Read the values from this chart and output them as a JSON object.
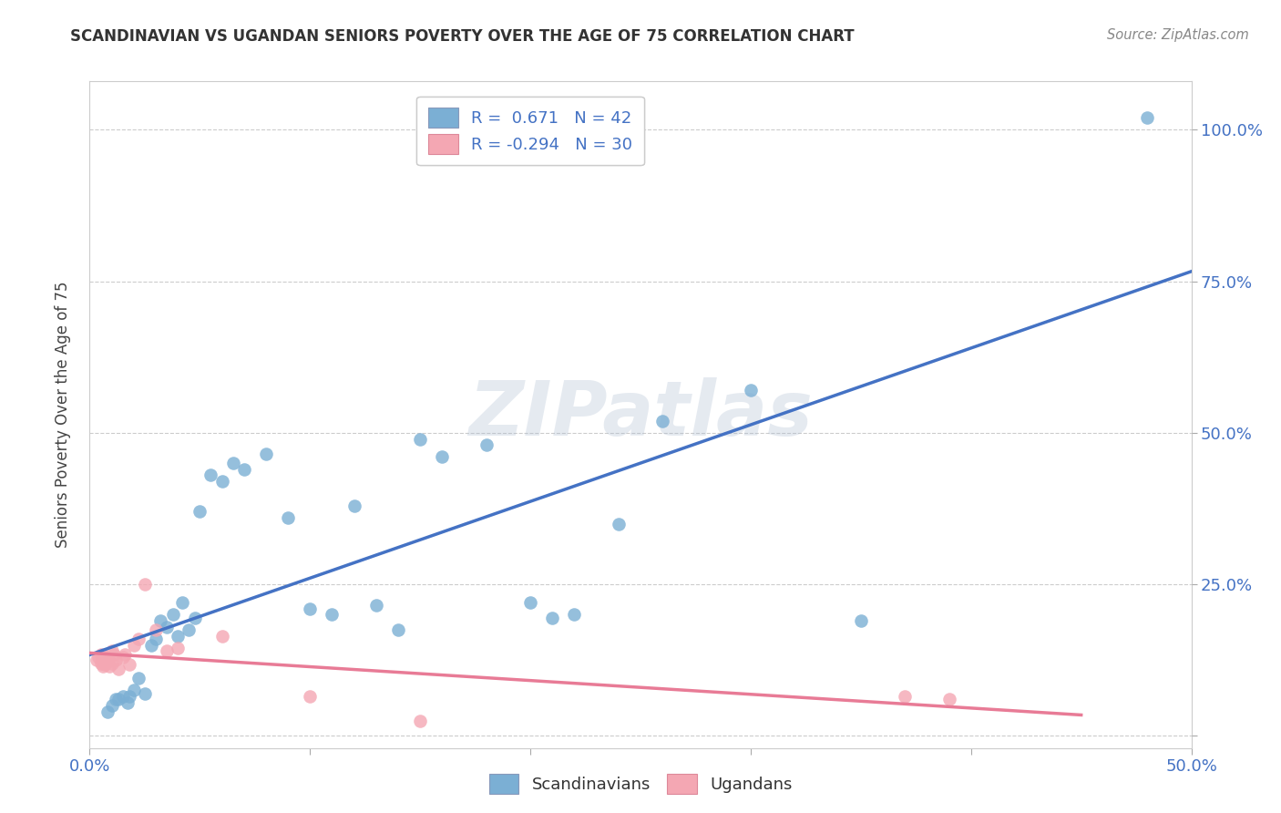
{
  "title": "SCANDINAVIAN VS UGANDAN SENIORS POVERTY OVER THE AGE OF 75 CORRELATION CHART",
  "source": "Source: ZipAtlas.com",
  "ylabel": "Seniors Poverty Over the Age of 75",
  "xlim": [
    0.0,
    0.5
  ],
  "ylim": [
    -0.02,
    1.08
  ],
  "blue_color": "#7BAFD4",
  "pink_color": "#F4A7B3",
  "blue_line_color": "#4472C4",
  "pink_line_color": "#E87B96",
  "axis_color": "#4472C4",
  "r_blue": 0.671,
  "n_blue": 42,
  "r_pink": -0.294,
  "n_pink": 30,
  "watermark": "ZIPatlas",
  "background_color": "#FFFFFF",
  "grid_color": "#CCCCCC",
  "scandinavians_x": [
    0.008,
    0.01,
    0.012,
    0.013,
    0.015,
    0.017,
    0.018,
    0.02,
    0.022,
    0.025,
    0.028,
    0.03,
    0.032,
    0.035,
    0.038,
    0.04,
    0.042,
    0.045,
    0.048,
    0.05,
    0.055,
    0.06,
    0.065,
    0.07,
    0.08,
    0.09,
    0.1,
    0.11,
    0.12,
    0.13,
    0.14,
    0.15,
    0.16,
    0.18,
    0.2,
    0.21,
    0.22,
    0.24,
    0.26,
    0.3,
    0.35,
    0.48
  ],
  "scandinavians_y": [
    0.04,
    0.05,
    0.06,
    0.06,
    0.065,
    0.055,
    0.065,
    0.075,
    0.095,
    0.07,
    0.15,
    0.16,
    0.19,
    0.18,
    0.2,
    0.165,
    0.22,
    0.175,
    0.195,
    0.37,
    0.43,
    0.42,
    0.45,
    0.44,
    0.465,
    0.36,
    0.21,
    0.2,
    0.38,
    0.215,
    0.175,
    0.49,
    0.46,
    0.48,
    0.22,
    0.195,
    0.2,
    0.35,
    0.52,
    0.57,
    0.19,
    1.02
  ],
  "ugandans_x": [
    0.003,
    0.004,
    0.005,
    0.005,
    0.006,
    0.006,
    0.007,
    0.007,
    0.008,
    0.008,
    0.009,
    0.01,
    0.01,
    0.011,
    0.012,
    0.013,
    0.015,
    0.016,
    0.018,
    0.02,
    0.022,
    0.025,
    0.03,
    0.035,
    0.04,
    0.06,
    0.1,
    0.15,
    0.37,
    0.39
  ],
  "ugandans_y": [
    0.125,
    0.13,
    0.12,
    0.135,
    0.115,
    0.128,
    0.118,
    0.132,
    0.122,
    0.128,
    0.115,
    0.12,
    0.14,
    0.135,
    0.125,
    0.11,
    0.13,
    0.135,
    0.118,
    0.15,
    0.16,
    0.25,
    0.175,
    0.14,
    0.145,
    0.165,
    0.065,
    0.025,
    0.065,
    0.06
  ]
}
